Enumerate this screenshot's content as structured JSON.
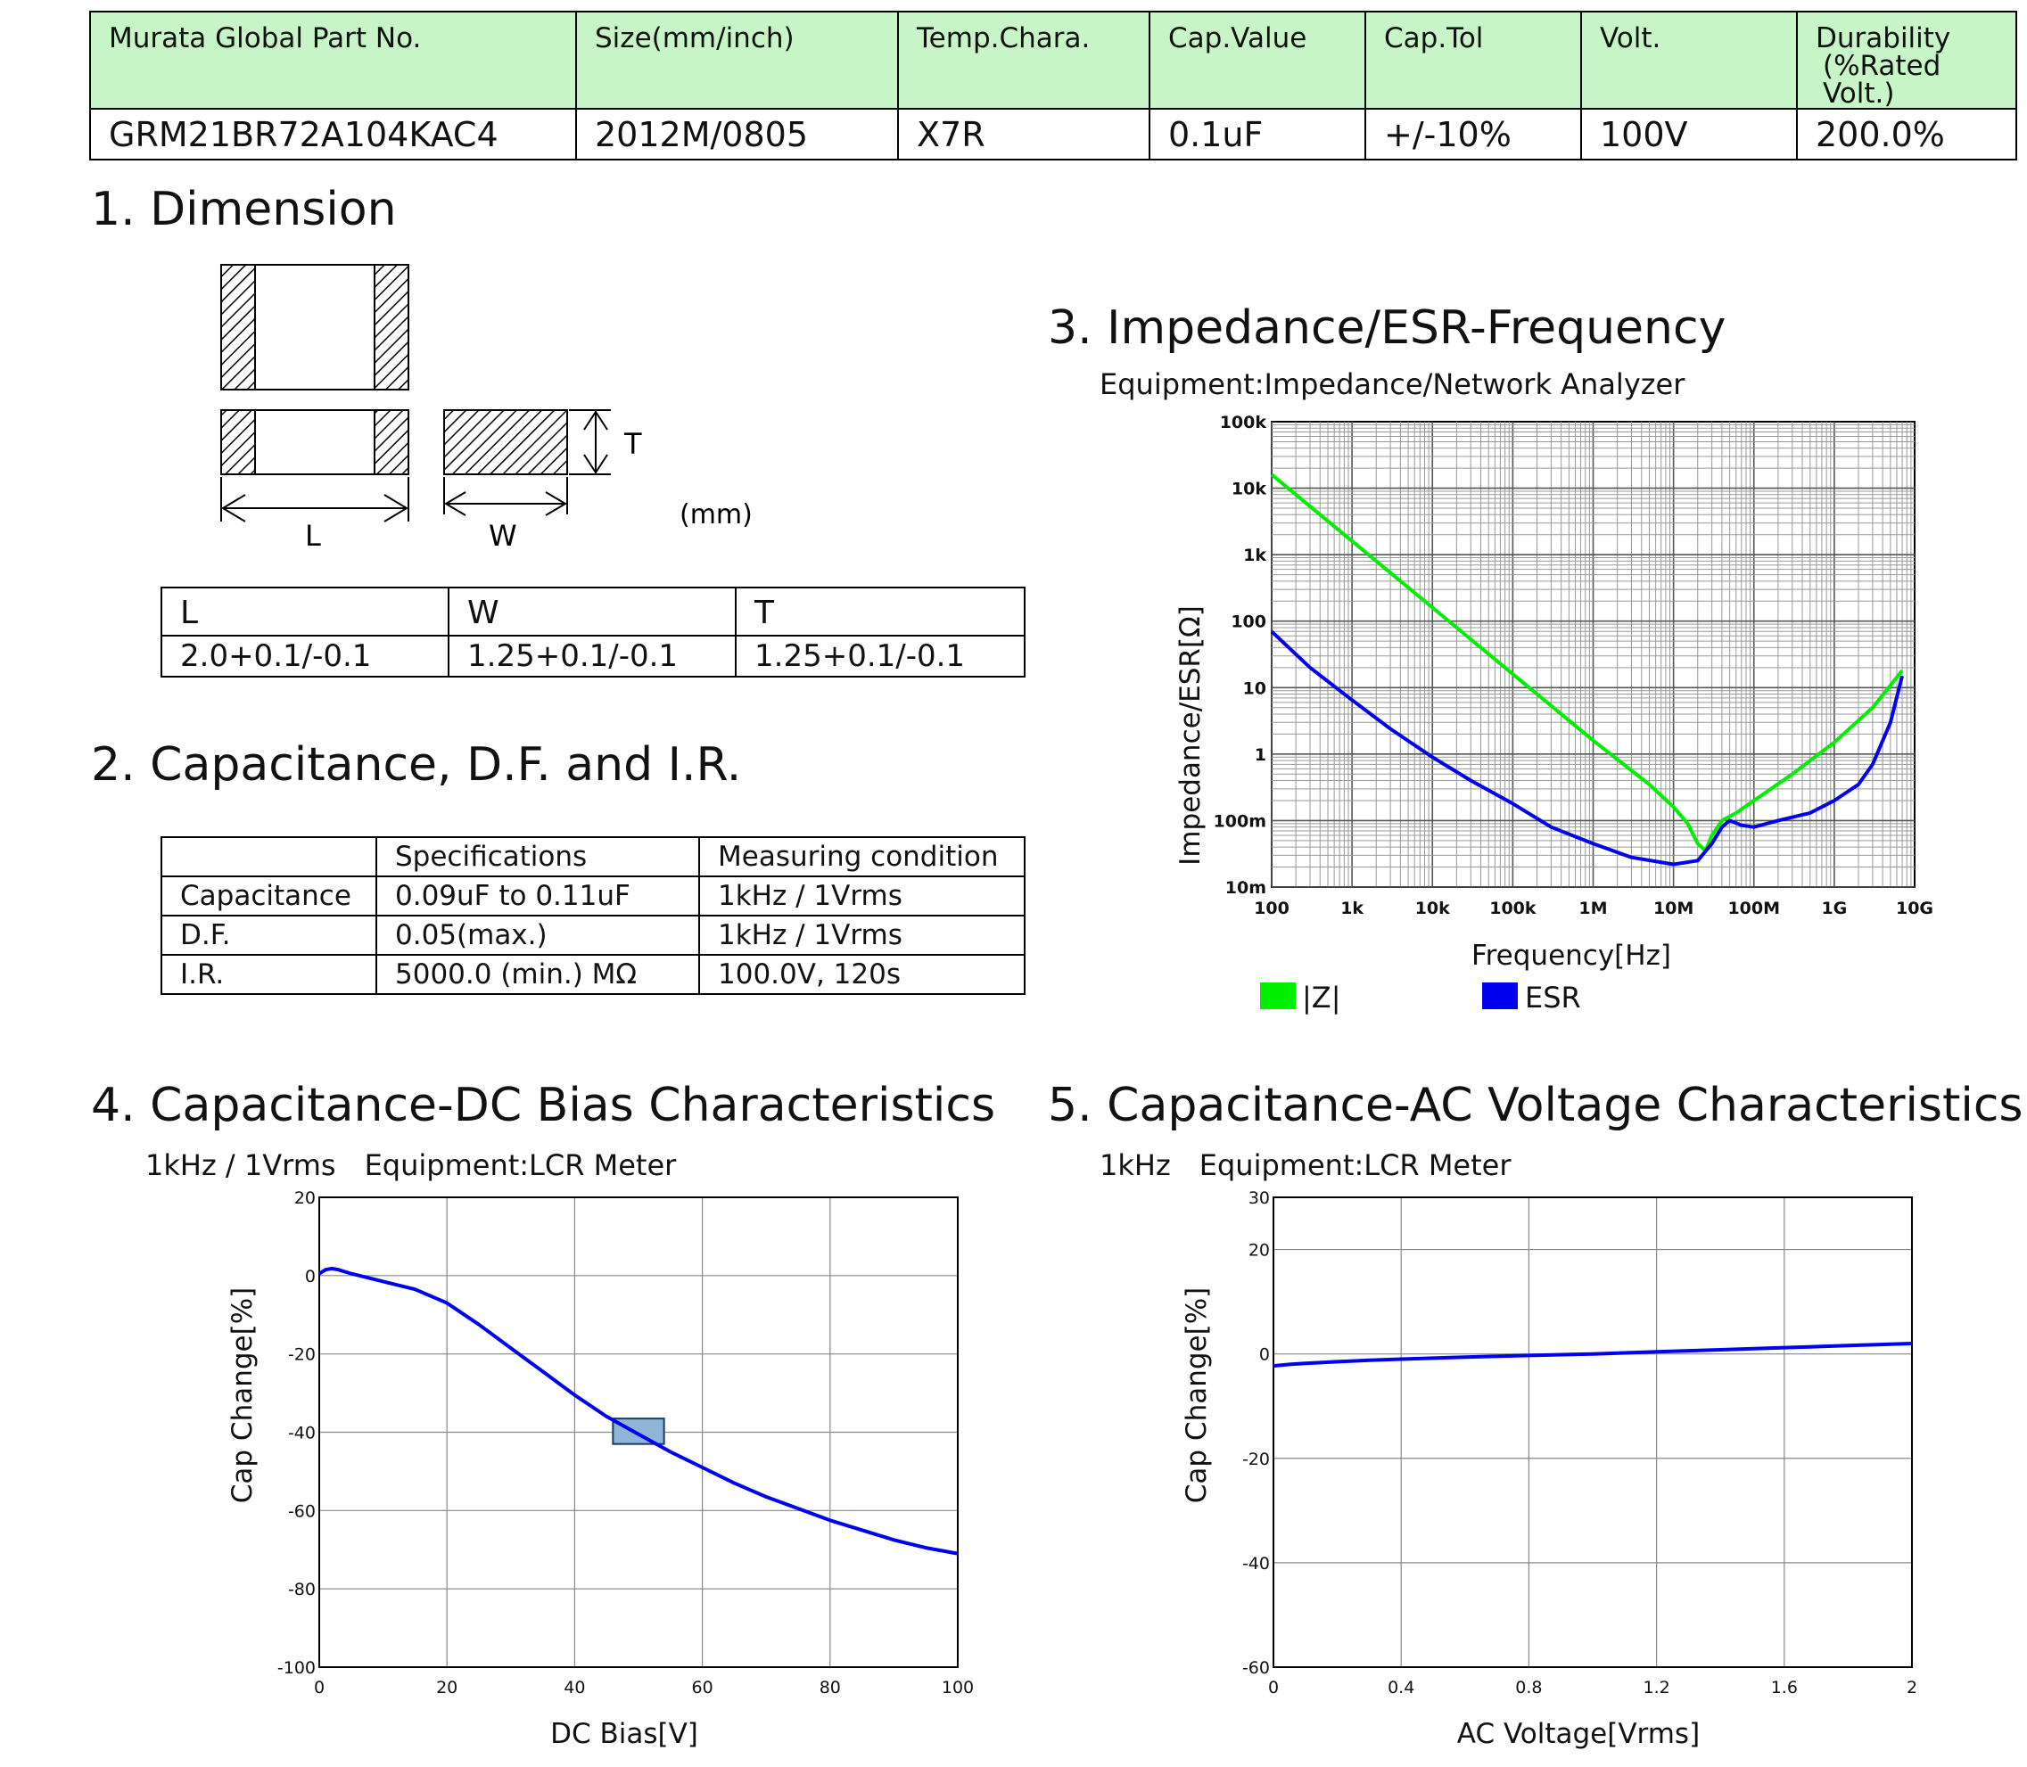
{
  "part_table": {
    "headers": [
      "Murata Global Part No.",
      "Size(mm/inch)",
      "Temp.Chara.",
      "Cap.Value",
      "Cap.Tol",
      "Volt.",
      "Durability"
    ],
    "durability_sub": "(%Rated Volt.)",
    "values": [
      "GRM21BR72A104KAC4",
      "2012M/0805",
      "X7R",
      "0.1uF",
      "+/-10%",
      "100V",
      "200.0%"
    ]
  },
  "sections": {
    "dimension": "1. Dimension",
    "capacitance": "2. Capacitance, D.F. and I.R.",
    "impedance": "3. Impedance/ESR-Frequency",
    "dc_bias": "4. Capacitance-DC Bias Characteristics",
    "ac_voltage": "5. Capacitance-AC Voltage Characteristics"
  },
  "dimension": {
    "labels": {
      "L": "L",
      "W": "W",
      "T": "T",
      "unit": "(mm)"
    },
    "table": {
      "headers": [
        "L",
        "W",
        "T"
      ],
      "values": [
        "2.0+0.1/-0.1",
        "1.25+0.1/-0.1",
        "1.25+0.1/-0.1"
      ]
    }
  },
  "spec_table": {
    "headers": [
      "",
      "Specifications",
      "Measuring condition"
    ],
    "rows": [
      [
        "Capacitance",
        "0.09uF to 0.11uF",
        "1kHz / 1Vrms"
      ],
      [
        "D.F.",
        "0.05(max.)",
        "1kHz / 1Vrms"
      ],
      [
        "I.R.",
        "5000.0 (min.) MΩ",
        "100.0V, 120s"
      ]
    ]
  },
  "impedance_equipment": "Equipment:Impedance/Network Analyzer",
  "dc_bias_conditions": "1kHz / 1Vrms　Equipment:LCR Meter",
  "ac_conditions": "1kHz　Equipment:LCR Meter",
  "colors": {
    "z": "#00ee00",
    "esr": "#0000ee",
    "header_bg": "#c8f5c8"
  },
  "chart_data": [
    {
      "type": "line",
      "xlabel": "Frequency[Hz]",
      "ylabel": "Impedance/ESR[Ω]",
      "xscale": "log",
      "yscale": "log",
      "xlim": [
        100,
        10000000000
      ],
      "ylim": [
        0.01,
        100000
      ],
      "x_ticks": [
        "100",
        "1k",
        "10k",
        "100k",
        "1M",
        "10M",
        "100M",
        "1G",
        "10G"
      ],
      "y_ticks": [
        "10m",
        "100m",
        "1",
        "10",
        "100",
        "1k",
        "10k",
        "100k"
      ],
      "grid": true,
      "legend_position": "bottom",
      "series": [
        {
          "name": "|Z|",
          "x": [
            100,
            1000,
            10000,
            100000,
            1000000,
            5000000,
            10000000,
            15000000,
            20000000,
            25000000,
            30000000,
            40000000,
            60000000,
            100000000,
            300000000,
            1000000000,
            3000000000,
            7000000000
          ],
          "y": [
            16000,
            1600,
            160,
            16,
            1.6,
            0.35,
            0.16,
            0.09,
            0.045,
            0.035,
            0.06,
            0.1,
            0.13,
            0.2,
            0.5,
            1.5,
            5,
            18
          ]
        },
        {
          "name": "ESR",
          "x": [
            100,
            300,
            1000,
            3000,
            10000,
            30000,
            100000,
            300000,
            1000000,
            3000000,
            10000000,
            20000000,
            30000000,
            40000000,
            50000000,
            70000000,
            100000000,
            200000000,
            500000000,
            1000000000,
            2000000000,
            3000000000,
            5000000000,
            7000000000
          ],
          "y": [
            70,
            20,
            6.5,
            2.4,
            0.9,
            0.4,
            0.18,
            0.08,
            0.045,
            0.028,
            0.022,
            0.025,
            0.045,
            0.08,
            0.1,
            0.085,
            0.08,
            0.1,
            0.13,
            0.2,
            0.35,
            0.7,
            3,
            15
          ]
        }
      ]
    },
    {
      "type": "line",
      "xlabel": "DC Bias[V]",
      "ylabel": "Cap Change[%]",
      "xlim": [
        0,
        100
      ],
      "ylim": [
        -100,
        20
      ],
      "x_ticks": [
        0,
        20,
        40,
        60,
        80,
        100
      ],
      "y_ticks": [
        20,
        0,
        -20,
        -40,
        -60,
        -80,
        -100
      ],
      "grid": true,
      "highlight_box": {
        "x": [
          46,
          54
        ],
        "y": [
          -36.5,
          -43
        ]
      },
      "series": [
        {
          "x": [
            0,
            1,
            2,
            3,
            5,
            10,
            15,
            20,
            25,
            30,
            35,
            40,
            45,
            50,
            55,
            60,
            65,
            70,
            75,
            80,
            85,
            90,
            95,
            100
          ],
          "y": [
            0.5,
            1.5,
            1.8,
            1.5,
            0.5,
            -1.5,
            -3.5,
            -7,
            -12.5,
            -18.5,
            -24.5,
            -30.5,
            -36,
            -40.5,
            -45,
            -49,
            -53,
            -56.5,
            -59.5,
            -62.5,
            -65,
            -67.5,
            -69.5,
            -71
          ]
        }
      ]
    },
    {
      "type": "line",
      "xlabel": "AC Voltage[Vrms]",
      "ylabel": "Cap Change[%]",
      "xlim": [
        0,
        2
      ],
      "ylim": [
        -60,
        30
      ],
      "x_ticks": [
        "0",
        "0.4",
        "0.8",
        "1.2",
        "1.6",
        "2"
      ],
      "y_ticks": [
        30,
        20,
        0,
        -20,
        -40,
        -60
      ],
      "grid": true,
      "series": [
        {
          "x": [
            0,
            0.05,
            0.1,
            0.2,
            0.3,
            0.4,
            0.6,
            0.8,
            1.0,
            1.2,
            1.4,
            1.6,
            1.8,
            2.0
          ],
          "y": [
            -2.3,
            -2.0,
            -1.8,
            -1.5,
            -1.2,
            -1.0,
            -0.6,
            -0.3,
            0.0,
            0.4,
            0.8,
            1.2,
            1.6,
            2.0
          ]
        }
      ]
    }
  ]
}
